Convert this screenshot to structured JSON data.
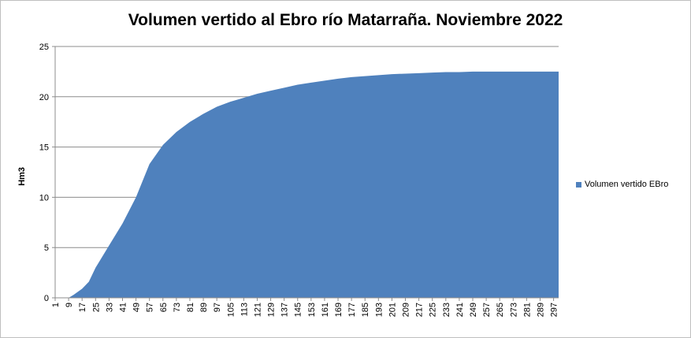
{
  "chart_data": {
    "type": "area",
    "title": "Volumen vertido al Ebro río Matarraña. Noviembre 2022",
    "xlabel": "",
    "ylabel": "Hm3",
    "ylim": [
      0,
      25
    ],
    "xlim": [
      1,
      300
    ],
    "y_ticks": [
      0,
      5,
      10,
      15,
      20,
      25
    ],
    "x_ticks": [
      1,
      9,
      17,
      25,
      33,
      41,
      49,
      57,
      65,
      73,
      81,
      89,
      97,
      105,
      113,
      121,
      129,
      137,
      145,
      153,
      161,
      169,
      177,
      185,
      193,
      201,
      209,
      217,
      225,
      233,
      241,
      249,
      257,
      265,
      273,
      281,
      289,
      297
    ],
    "grid": true,
    "legend_position": "right",
    "colors": {
      "series": "#4f81bd",
      "grid": "#8c8c8c"
    },
    "series": [
      {
        "name": "Volumen vertido EBro",
        "x": [
          1,
          9,
          12,
          17,
          21,
          25,
          33,
          41,
          49,
          57,
          65,
          73,
          81,
          89,
          97,
          105,
          113,
          121,
          129,
          137,
          145,
          153,
          161,
          169,
          177,
          185,
          193,
          201,
          209,
          217,
          225,
          233,
          241,
          249,
          257,
          265,
          273,
          281,
          289,
          297,
          300
        ],
        "values": [
          0,
          0,
          0.3,
          0.9,
          1.6,
          3.0,
          5.2,
          7.4,
          10.0,
          13.3,
          15.2,
          16.5,
          17.5,
          18.3,
          19.0,
          19.5,
          19.9,
          20.3,
          20.6,
          20.9,
          21.2,
          21.4,
          21.6,
          21.8,
          21.95,
          22.05,
          22.15,
          22.25,
          22.3,
          22.35,
          22.4,
          22.45,
          22.45,
          22.5,
          22.5,
          22.5,
          22.5,
          22.5,
          22.5,
          22.5,
          22.5
        ]
      }
    ]
  }
}
